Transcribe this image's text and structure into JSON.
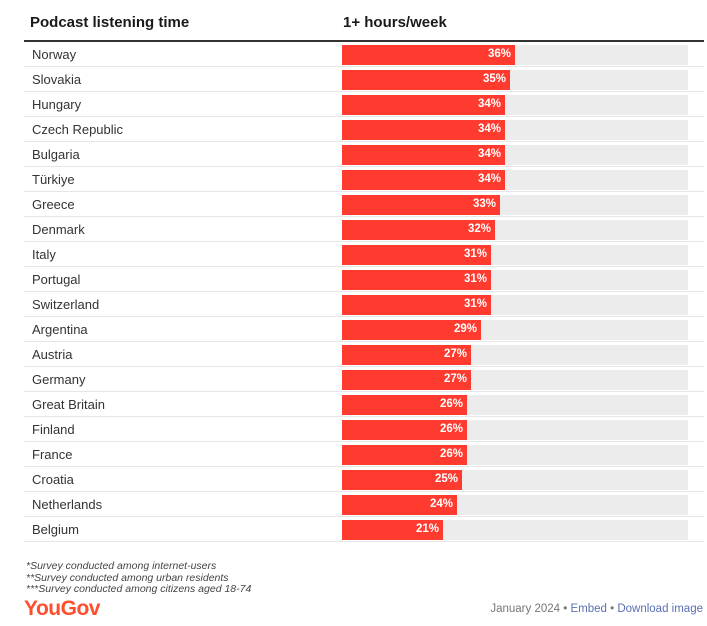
{
  "header": {
    "country_col": "Podcast listening time",
    "metric_col": "1+ hours/week"
  },
  "chart_data": {
    "type": "bar",
    "orientation": "horizontal",
    "categories": [
      "Norway",
      "Slovakia",
      "Hungary",
      "Czech Republic",
      "Bulgaria",
      "Türkiye",
      "Greece",
      "Denmark",
      "Italy",
      "Portugal",
      "Switzerland",
      "Argentina",
      "Austria",
      "Germany",
      "Great Britain",
      "Finland",
      "France",
      "Croatia",
      "Netherlands",
      "Belgium"
    ],
    "values": [
      36,
      35,
      34,
      34,
      34,
      34,
      33,
      32,
      31,
      31,
      31,
      29,
      27,
      27,
      26,
      26,
      26,
      25,
      24,
      21
    ],
    "labels": [
      "36%",
      "35%",
      "34%",
      "34%",
      "34%",
      "34%",
      "33%",
      "32%",
      "31%",
      "31%",
      "31%",
      "29%",
      "27%",
      "27%",
      "26%",
      "26%",
      "26%",
      "25%",
      "24%",
      "21%"
    ],
    "xlim": [
      0,
      100
    ],
    "bar_color": "#ff3b30",
    "track_color": "#ececec"
  },
  "notes": [
    "*Survey conducted among internet-users",
    "**Survey conducted among urban residents",
    "***Survey conducted among citizens aged 18-74"
  ],
  "brand": {
    "logo": "YouGov",
    "color": "#ff4d2e"
  },
  "footer": {
    "date": "January 2024",
    "sep1": " • ",
    "embed": "Embed",
    "sep2": " • ",
    "download": "Download image"
  }
}
